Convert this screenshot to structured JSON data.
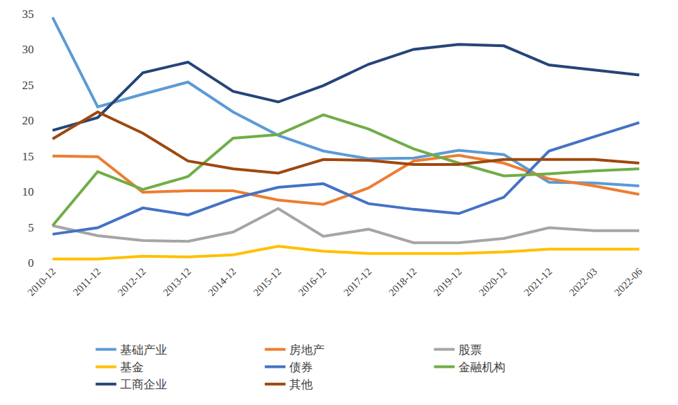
{
  "chart_data": {
    "type": "line",
    "categories": [
      "2010-12",
      "2011-12",
      "2012-12",
      "2013-12",
      "2014-12",
      "2015-12",
      "2016-12",
      "2017-12",
      "2018-12",
      "2019-12",
      "2020-12",
      "2021-12",
      "2022-03",
      "2022-06"
    ],
    "series": [
      {
        "name": "基础产业",
        "color": "#5B9BD5",
        "values": [
          34.5,
          21.9,
          23.7,
          25.4,
          21.2,
          17.9,
          15.7,
          14.6,
          14.7,
          15.8,
          15.2,
          11.3,
          11.2,
          10.8
        ]
      },
      {
        "name": "房地产",
        "color": "#ED7D31",
        "values": [
          15.0,
          14.9,
          9.9,
          10.1,
          10.1,
          8.8,
          8.2,
          10.5,
          14.3,
          15.1,
          14.0,
          11.8,
          10.8,
          9.6
        ]
      },
      {
        "name": "股票",
        "color": "#A5A5A5",
        "values": [
          5.2,
          3.8,
          3.1,
          3.0,
          4.3,
          7.6,
          3.7,
          4.7,
          2.8,
          2.8,
          3.4,
          4.9,
          4.5,
          4.5
        ]
      },
      {
        "name": "基金",
        "color": "#FFC000",
        "values": [
          0.5,
          0.5,
          0.9,
          0.8,
          1.1,
          2.3,
          1.6,
          1.3,
          1.3,
          1.3,
          1.5,
          1.9,
          1.9,
          1.9
        ]
      },
      {
        "name": "债券",
        "color": "#4472C4",
        "values": [
          4.0,
          4.9,
          7.7,
          6.7,
          9.0,
          10.6,
          11.1,
          8.3,
          7.5,
          6.9,
          9.2,
          15.7,
          17.7,
          19.7
        ]
      },
      {
        "name": "金融机构",
        "color": "#70AD47",
        "values": [
          5.2,
          12.8,
          10.3,
          12.1,
          17.5,
          18.0,
          20.8,
          18.8,
          16.0,
          14.0,
          12.2,
          12.5,
          12.9,
          13.2
        ]
      },
      {
        "name": "工商企业",
        "color": "#264478",
        "values": [
          18.6,
          20.4,
          26.7,
          28.2,
          24.1,
          22.6,
          24.9,
          27.9,
          30.0,
          30.7,
          30.5,
          27.8,
          27.1,
          26.4
        ]
      },
      {
        "name": "其他",
        "color": "#9E480E",
        "values": [
          17.4,
          21.2,
          18.2,
          14.3,
          13.2,
          12.6,
          14.5,
          14.4,
          13.8,
          13.8,
          14.5,
          14.5,
          14.5,
          14.0
        ]
      }
    ],
    "ylim": [
      0,
      35
    ],
    "yticks": [
      0,
      5,
      10,
      15,
      20,
      25,
      30,
      35
    ],
    "grid": false,
    "legend": "bottom"
  }
}
